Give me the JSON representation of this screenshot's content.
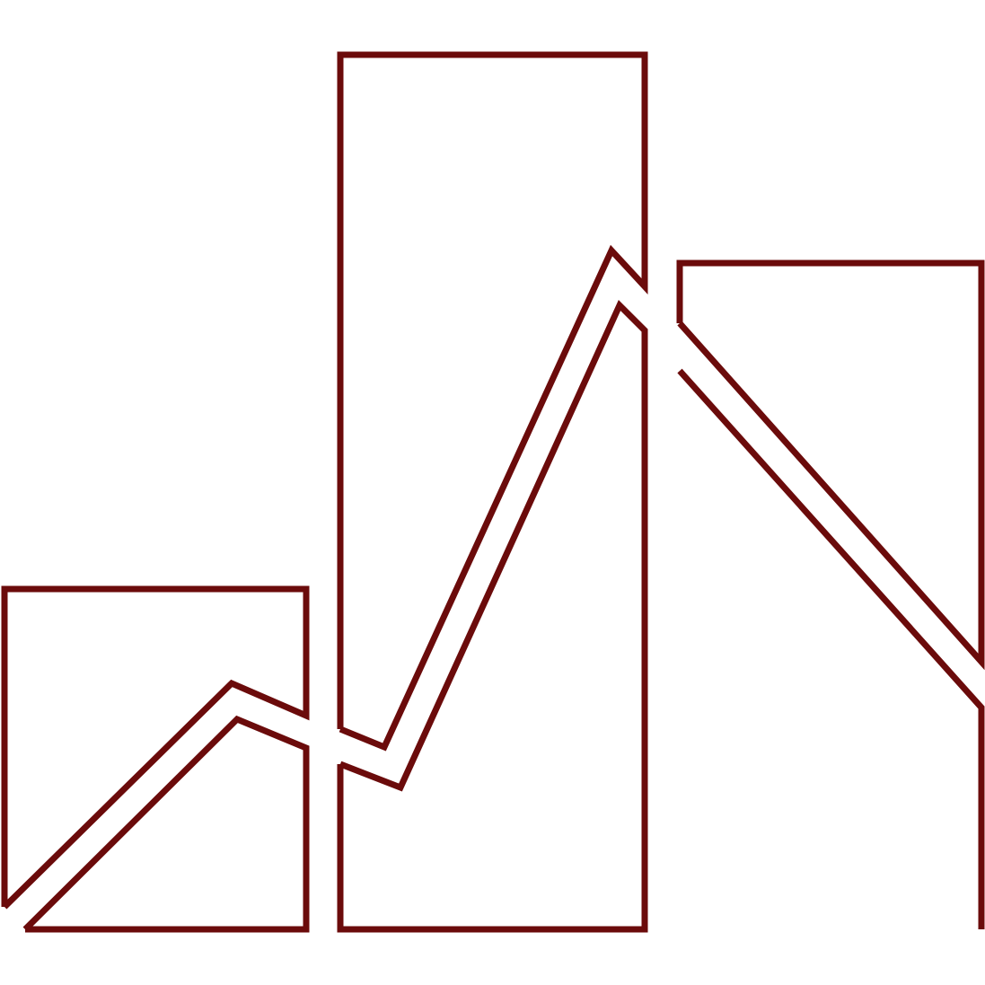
{
  "logo": {
    "icon": "bar-chart-trend-logo-icon",
    "stroke_color": "#6b0b0b",
    "background_color": "#ffffff"
  }
}
